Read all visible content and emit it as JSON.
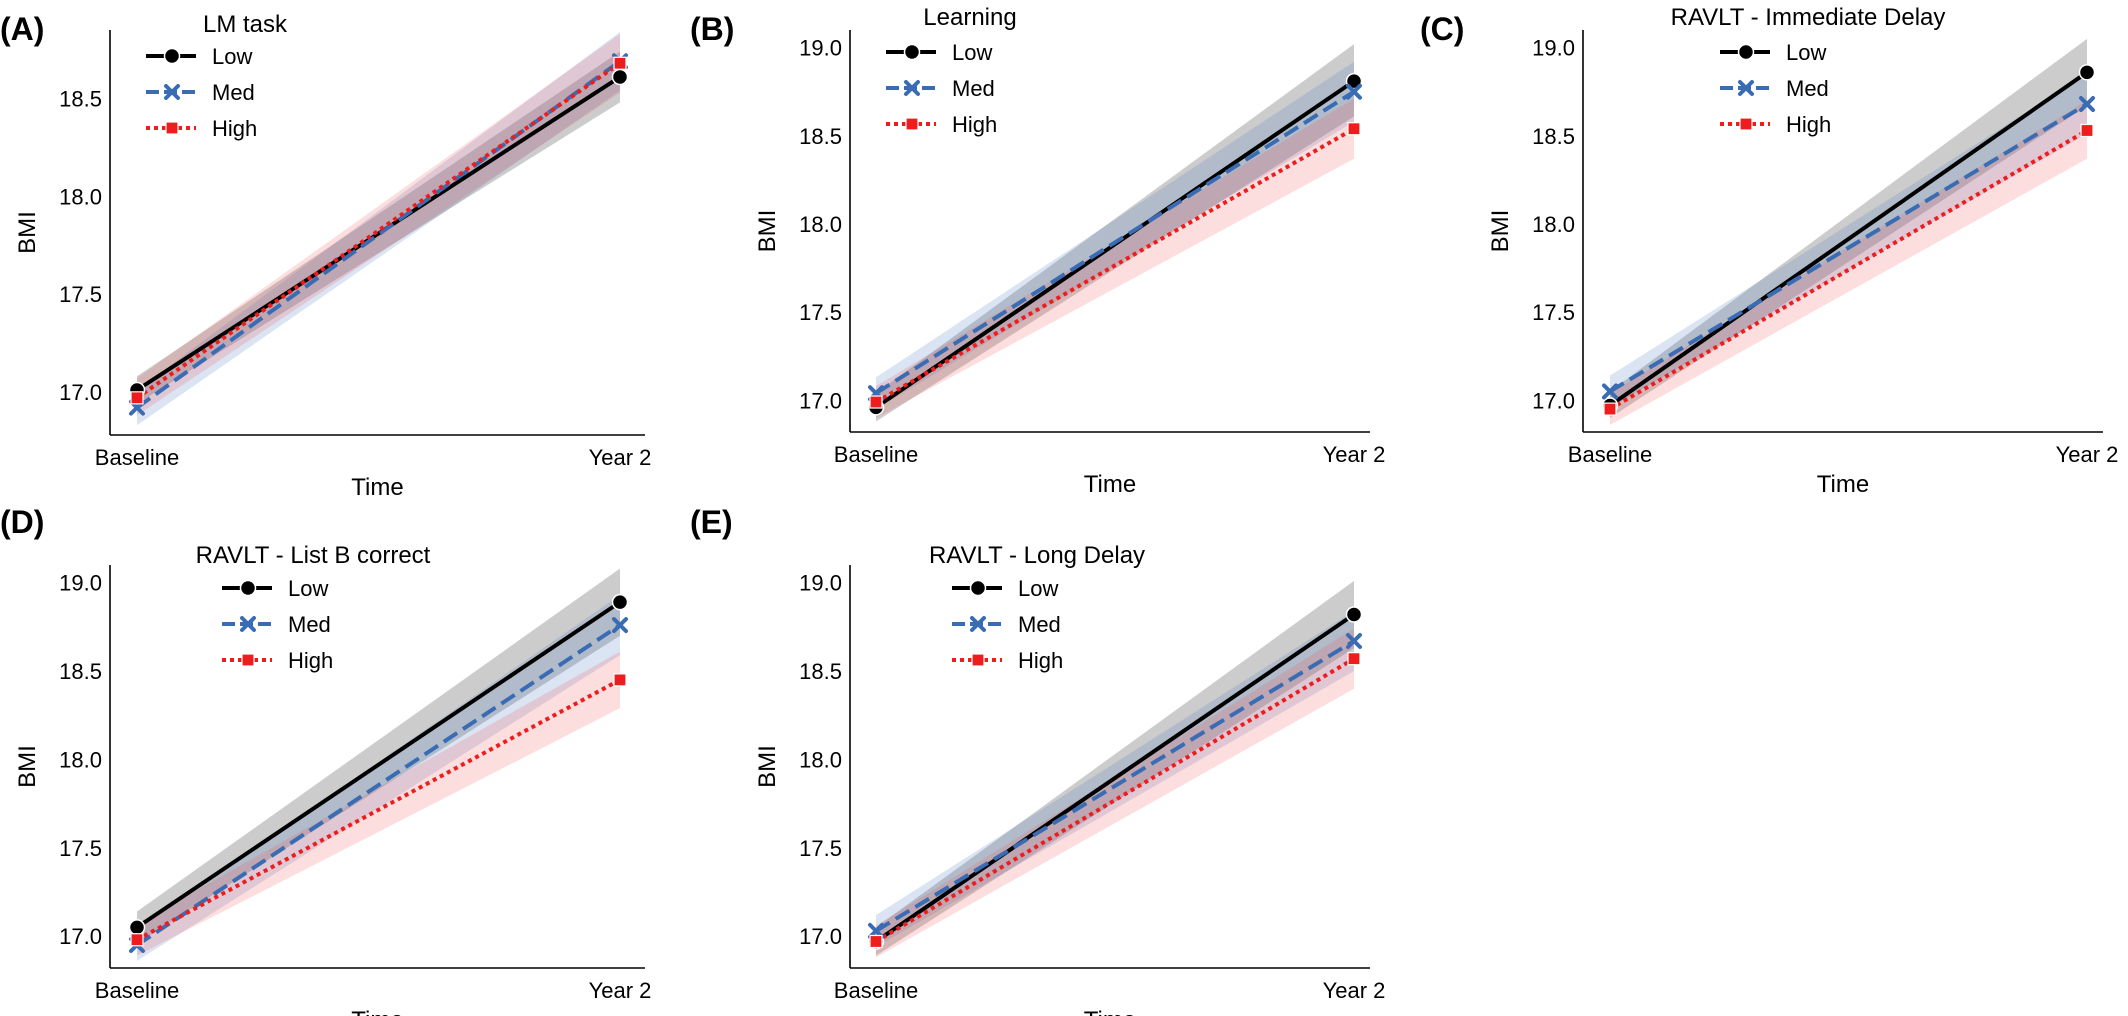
{
  "chart_data": [
    {
      "type": "line",
      "panel": "(A)",
      "title": "LM task",
      "xlabel": "Time",
      "ylabel": "BMI",
      "categories": [
        "Baseline",
        "Year 2"
      ],
      "ylim": [
        16.78,
        18.85
      ],
      "yticks": [
        "17.0",
        "17.5",
        "18.0",
        "18.5"
      ],
      "legend_position": "top-left",
      "series": [
        {
          "name": "Low",
          "values": [
            17.01,
            18.61
          ],
          "ci_low": [
            16.94,
            18.48
          ],
          "ci_high": [
            17.08,
            18.74
          ]
        },
        {
          "name": "Med",
          "values": [
            16.92,
            18.69
          ],
          "ci_low": [
            16.83,
            18.54
          ],
          "ci_high": [
            17.01,
            18.84
          ]
        },
        {
          "name": "High",
          "values": [
            16.97,
            18.68
          ],
          "ci_low": [
            16.88,
            18.53
          ],
          "ci_high": [
            17.07,
            18.83
          ]
        }
      ]
    },
    {
      "type": "line",
      "panel": "(B)",
      "title": "Learning",
      "xlabel": "Time",
      "ylabel": "BMI",
      "categories": [
        "Baseline",
        "Year 2"
      ],
      "ylim": [
        16.82,
        19.1
      ],
      "yticks": [
        "17.0",
        "17.5",
        "18.0",
        "18.5",
        "19.0"
      ],
      "legend_position": "top-left",
      "series": [
        {
          "name": "Low",
          "values": [
            16.96,
            18.81
          ],
          "ci_low": [
            16.88,
            18.61
          ],
          "ci_high": [
            17.04,
            19.02
          ]
        },
        {
          "name": "Med",
          "values": [
            17.04,
            18.75
          ],
          "ci_low": [
            16.95,
            18.58
          ],
          "ci_high": [
            17.13,
            18.92
          ]
        },
        {
          "name": "High",
          "values": [
            16.99,
            18.54
          ],
          "ci_low": [
            16.9,
            18.37
          ],
          "ci_high": [
            17.08,
            18.71
          ]
        }
      ]
    },
    {
      "type": "line",
      "panel": "(C)",
      "title": "RAVLT - Immediate Delay",
      "xlabel": "Time",
      "ylabel": "BMI",
      "categories": [
        "Baseline",
        "Year 2"
      ],
      "ylim": [
        16.82,
        19.1
      ],
      "yticks": [
        "17.0",
        "17.5",
        "18.0",
        "18.5",
        "19.0"
      ],
      "legend_position": "top-left",
      "series": [
        {
          "name": "Low",
          "values": [
            16.97,
            18.86
          ],
          "ci_low": [
            16.9,
            18.67
          ],
          "ci_high": [
            17.05,
            19.05
          ]
        },
        {
          "name": "Med",
          "values": [
            17.05,
            18.68
          ],
          "ci_low": [
            16.96,
            18.51
          ],
          "ci_high": [
            17.14,
            18.85
          ]
        },
        {
          "name": "High",
          "values": [
            16.95,
            18.53
          ],
          "ci_low": [
            16.86,
            18.37
          ],
          "ci_high": [
            17.04,
            18.7
          ]
        }
      ]
    },
    {
      "type": "line",
      "panel": "(D)",
      "title": "RAVLT - List B correct",
      "xlabel": "Time",
      "ylabel": "BMI",
      "categories": [
        "Baseline",
        "Year 2"
      ],
      "ylim": [
        16.82,
        19.1
      ],
      "yticks": [
        "17.0",
        "17.5",
        "18.0",
        "18.5",
        "19.0"
      ],
      "legend_position": "top-left",
      "series": [
        {
          "name": "Low",
          "values": [
            17.05,
            18.89
          ],
          "ci_low": [
            16.96,
            18.7
          ],
          "ci_high": [
            17.14,
            19.08
          ]
        },
        {
          "name": "Med",
          "values": [
            16.95,
            18.76
          ],
          "ci_low": [
            16.86,
            18.59
          ],
          "ci_high": [
            17.04,
            18.93
          ]
        },
        {
          "name": "High",
          "values": [
            16.98,
            18.45
          ],
          "ci_low": [
            16.89,
            18.29
          ],
          "ci_high": [
            17.07,
            18.61
          ]
        }
      ]
    },
    {
      "type": "line",
      "panel": "(E)",
      "title": "RAVLT - Long Delay",
      "xlabel": "Time",
      "ylabel": "BMI",
      "categories": [
        "Baseline",
        "Year 2"
      ],
      "ylim": [
        16.82,
        19.1
      ],
      "yticks": [
        "17.0",
        "17.5",
        "18.0",
        "18.5",
        "19.0"
      ],
      "legend_position": "top-left",
      "series": [
        {
          "name": "Low",
          "values": [
            16.97,
            18.82
          ],
          "ci_low": [
            16.89,
            18.63
          ],
          "ci_high": [
            17.05,
            19.01
          ]
        },
        {
          "name": "Med",
          "values": [
            17.03,
            18.67
          ],
          "ci_low": [
            16.94,
            18.5
          ],
          "ci_high": [
            17.12,
            18.84
          ]
        },
        {
          "name": "High",
          "values": [
            16.97,
            18.57
          ],
          "ci_low": [
            16.88,
            18.4
          ],
          "ci_high": [
            17.06,
            18.74
          ]
        }
      ]
    }
  ],
  "series_styles": {
    "Low": {
      "color": "#000000",
      "band": "#000000",
      "dash": "solid",
      "marker": "circle"
    },
    "Med": {
      "color": "#3a6cb4",
      "band": "#4a78c0",
      "dash": "dashed",
      "marker": "x"
    },
    "High": {
      "color": "#ee1c1c",
      "band": "#f25c5c",
      "dash": "dotted",
      "marker": "square"
    }
  }
}
